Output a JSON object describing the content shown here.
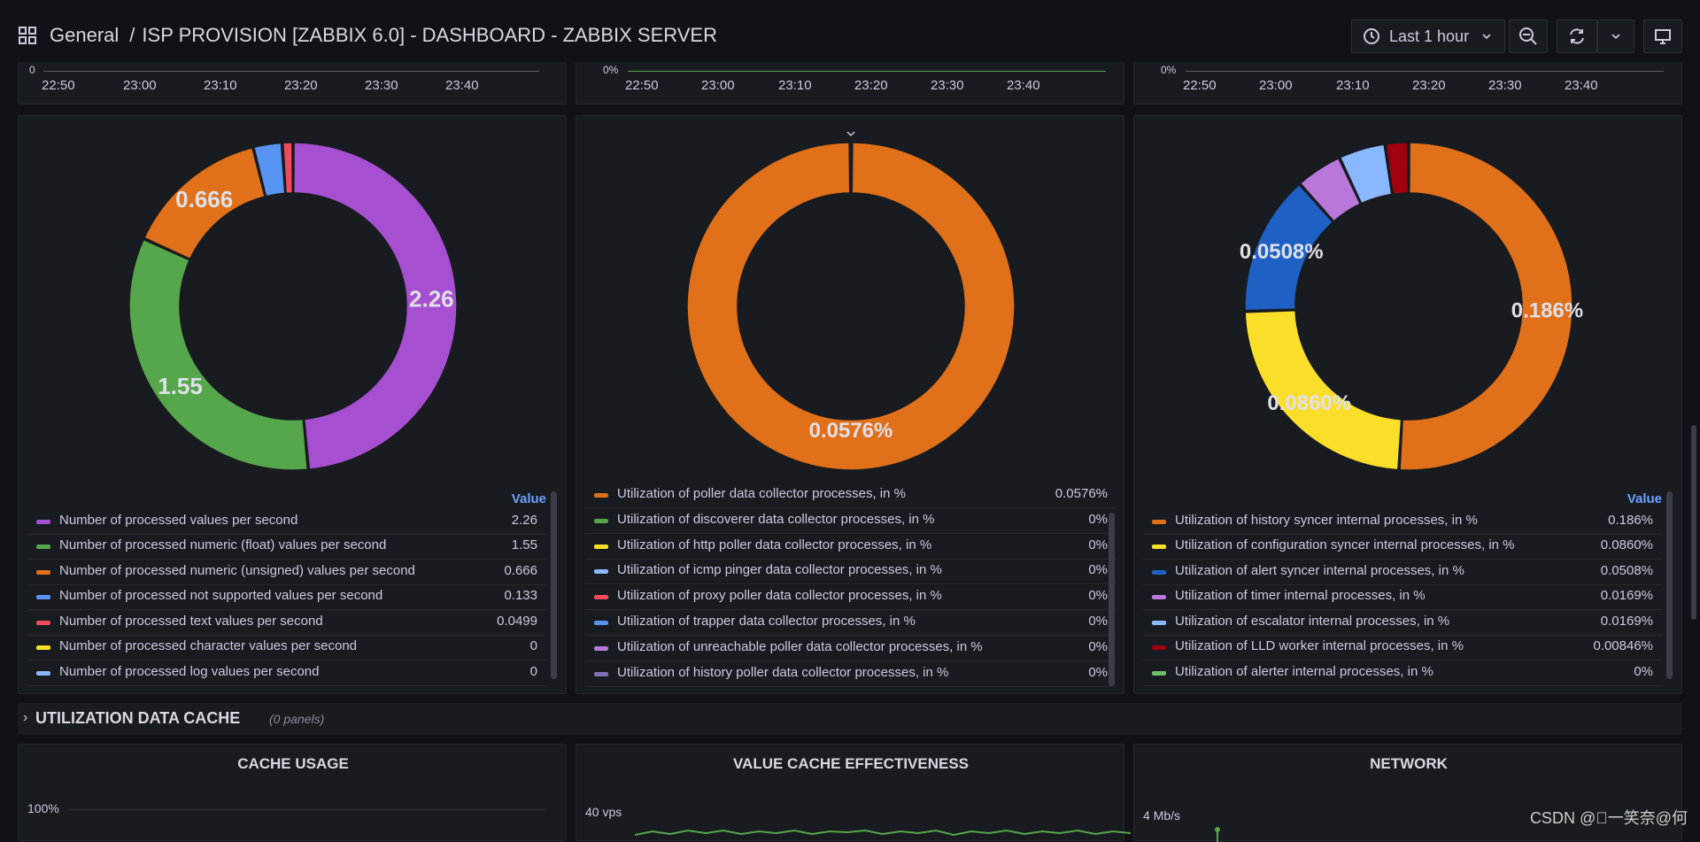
{
  "header": {
    "folder": "General",
    "separator": "/",
    "dashboard": "ISP PROVISION [ZABBIX 6.0] - DASHBOARD - ZABBIX SERVER",
    "time_range": "Last 1 hour"
  },
  "top_axis": {
    "panel1_ticks": [
      "22:50",
      "23:00",
      "23:10",
      "23:20",
      "23:30",
      "23:40"
    ],
    "panel2_ticks": [
      "22:50",
      "23:00",
      "23:10",
      "23:20",
      "23:30",
      "23:40"
    ],
    "panel3_ticks": [
      "22:50",
      "23:00",
      "23:10",
      "23:20",
      "23:30",
      "23:40"
    ],
    "panel1_y": "0",
    "panel2_y": "0%",
    "panel3_y": "0%"
  },
  "colors": {
    "purple": "#a64fd1",
    "green": "#56a64b",
    "orange": "#e0701a",
    "blue": "#5794f2",
    "red": "#f2495c",
    "yellow": "#fade2a",
    "lightblue": "#8ab8ff",
    "violet": "#806eb7",
    "darkblue": "#1f60c4",
    "darkred": "#a1000f",
    "accent": "#6e9fff"
  },
  "chart_data": [
    {
      "type": "pie",
      "title": "",
      "legend_header": "Value",
      "series": [
        {
          "name": "Number of processed values per second",
          "value": 2.26,
          "label": "2.26",
          "color": "#a64fd1"
        },
        {
          "name": "Number of processed numeric (float) values per second",
          "value": 1.55,
          "label": "1.55",
          "color": "#56a64b"
        },
        {
          "name": "Number of processed numeric (unsigned) values per second",
          "value": 0.666,
          "label": "0.666",
          "color": "#e0701a"
        },
        {
          "name": "Number of processed not supported values per second",
          "value": 0.133,
          "label": "0.133",
          "color": "#5794f2"
        },
        {
          "name": "Number of processed text values per second",
          "value": 0.0499,
          "label": "0.0499",
          "color": "#f2495c"
        },
        {
          "name": "Number of processed character values per second",
          "value": 0,
          "label": "0",
          "color": "#fade2a"
        },
        {
          "name": "Number of processed log values per second",
          "value": 0,
          "label": "0",
          "color": "#8ab8ff"
        }
      ]
    },
    {
      "type": "pie",
      "title": "",
      "series": [
        {
          "name": "Utilization of poller data collector processes, in %",
          "value": 0.0576,
          "label": "0.0576%",
          "color": "#e0701a"
        },
        {
          "name": "Utilization of discoverer data collector processes, in %",
          "value": 0,
          "label": "0%",
          "color": "#56a64b"
        },
        {
          "name": "Utilization of http poller data collector processes, in %",
          "value": 0,
          "label": "0%",
          "color": "#fade2a"
        },
        {
          "name": "Utilization of icmp pinger data collector processes, in %",
          "value": 0,
          "label": "0%",
          "color": "#8ab8ff"
        },
        {
          "name": "Utilization of proxy poller data collector processes, in %",
          "value": 0,
          "label": "0%",
          "color": "#f2495c"
        },
        {
          "name": "Utilization of trapper data collector processes, in %",
          "value": 0,
          "label": "0%",
          "color": "#5794f2"
        },
        {
          "name": "Utilization of unreachable poller data collector processes, in %",
          "value": 0,
          "label": "0%",
          "color": "#b877d9"
        },
        {
          "name": "Utilization of history poller data collector processes, in %",
          "value": 0,
          "label": "0%",
          "color": "#806eb7"
        }
      ]
    },
    {
      "type": "pie",
      "title": "",
      "legend_header": "Value",
      "series": [
        {
          "name": "Utilization of history syncer internal processes, in %",
          "value": 0.186,
          "label": "0.186%",
          "color": "#e0701a"
        },
        {
          "name": "Utilization of configuration syncer internal processes, in %",
          "value": 0.086,
          "label": "0.0860%",
          "color": "#fade2a"
        },
        {
          "name": "Utilization of alert syncer internal processes, in %",
          "value": 0.0508,
          "label": "0.0508%",
          "color": "#1f60c4"
        },
        {
          "name": "Utilization of timer internal processes, in %",
          "value": 0.0169,
          "label": "0.0169%",
          "color": "#b877d9"
        },
        {
          "name": "Utilization of escalator internal processes, in %",
          "value": 0.0169,
          "label": "0.0169%",
          "color": "#8ab8ff"
        },
        {
          "name": "Utilization of LLD worker internal processes, in %",
          "value": 0.00846,
          "label": "0.00846%",
          "color": "#a1000f"
        },
        {
          "name": "Utilization of alerter internal processes, in %",
          "value": 0,
          "label": "0%",
          "color": "#73bf69"
        }
      ]
    }
  ],
  "section": {
    "title": "UTILIZATION DATA CACHE",
    "count": "(0 panels)"
  },
  "bottom_panels": {
    "cache_usage": {
      "title": "CACHE USAGE",
      "y_top": "100%"
    },
    "value_cache": {
      "title": "VALUE CACHE EFFECTIVENESS",
      "y_top": "40 vps"
    },
    "network": {
      "title": "NETWORK",
      "y_top": "4 Mb/s"
    }
  },
  "watermark": "CSDN @\u0000一笑奈@何"
}
